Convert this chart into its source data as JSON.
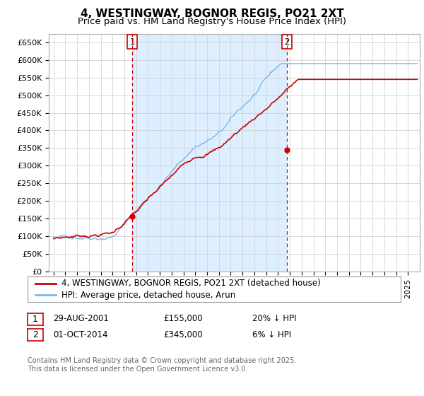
{
  "title": "4, WESTINGWAY, BOGNOR REGIS, PO21 2XT",
  "subtitle": "Price paid vs. HM Land Registry's House Price Index (HPI)",
  "ylim": [
    0,
    675000
  ],
  "yticks": [
    0,
    50000,
    100000,
    150000,
    200000,
    250000,
    300000,
    350000,
    400000,
    450000,
    500000,
    550000,
    600000,
    650000
  ],
  "ytick_labels": [
    "£0",
    "£50K",
    "£100K",
    "£150K",
    "£200K",
    "£250K",
    "£300K",
    "£350K",
    "£400K",
    "£450K",
    "£500K",
    "£550K",
    "£600K",
    "£650K"
  ],
  "hpi_color": "#7ab8e8",
  "price_color": "#cc0000",
  "vline_color": "#cc0000",
  "shade_color": "#ddeeff",
  "grid_color": "#cccccc",
  "background_color": "#ffffff",
  "sale1_x": 2001.66,
  "sale1_y": 155000,
  "sale1_label": "1",
  "sale2_x": 2014.75,
  "sale2_y": 345000,
  "sale2_label": "2",
  "xlim_left": 1994.6,
  "xlim_right": 2026.0,
  "legend_line1": "4, WESTINGWAY, BOGNOR REGIS, PO21 2XT (detached house)",
  "legend_line2": "HPI: Average price, detached house, Arun",
  "table_row1": [
    "1",
    "29-AUG-2001",
    "£155,000",
    "20% ↓ HPI"
  ],
  "table_row2": [
    "2",
    "01-OCT-2014",
    "£345,000",
    "6% ↓ HPI"
  ],
  "footer": "Contains HM Land Registry data © Crown copyright and database right 2025.\nThis data is licensed under the Open Government Licence v3.0.",
  "title_fontsize": 11,
  "subtitle_fontsize": 9.5,
  "tick_fontsize": 8,
  "legend_fontsize": 8.5,
  "table_fontsize": 8.5,
  "footer_fontsize": 7
}
